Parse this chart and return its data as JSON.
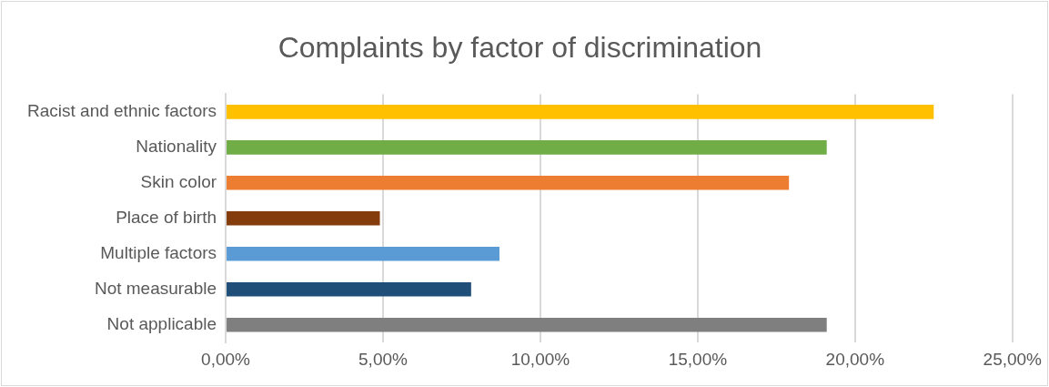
{
  "chart_data": {
    "type": "bar",
    "orientation": "horizontal",
    "title": "Complaints by factor of discrimination",
    "categories": [
      "Racist and ethnic factors",
      "Nationality",
      "Skin color",
      "Place of birth",
      "Multiple factors",
      "Not measurable",
      "Not applicable"
    ],
    "values": [
      22.5,
      19.1,
      17.9,
      4.9,
      8.7,
      7.8,
      19.1
    ],
    "colors": [
      "#ffc000",
      "#70ad47",
      "#ed7d31",
      "#843c0c",
      "#5b9bd5",
      "#1f4e79",
      "#7f7f7f"
    ],
    "xlim": [
      0,
      25
    ],
    "xticks": [
      {
        "value": 0,
        "label": "0,00%"
      },
      {
        "value": 5,
        "label": "5,00%"
      },
      {
        "value": 10,
        "label": "10,00%"
      },
      {
        "value": 15,
        "label": "15,00%"
      },
      {
        "value": 20,
        "label": "20,00%"
      },
      {
        "value": 25,
        "label": "25,00%"
      }
    ],
    "grid": "x",
    "legend": false
  }
}
